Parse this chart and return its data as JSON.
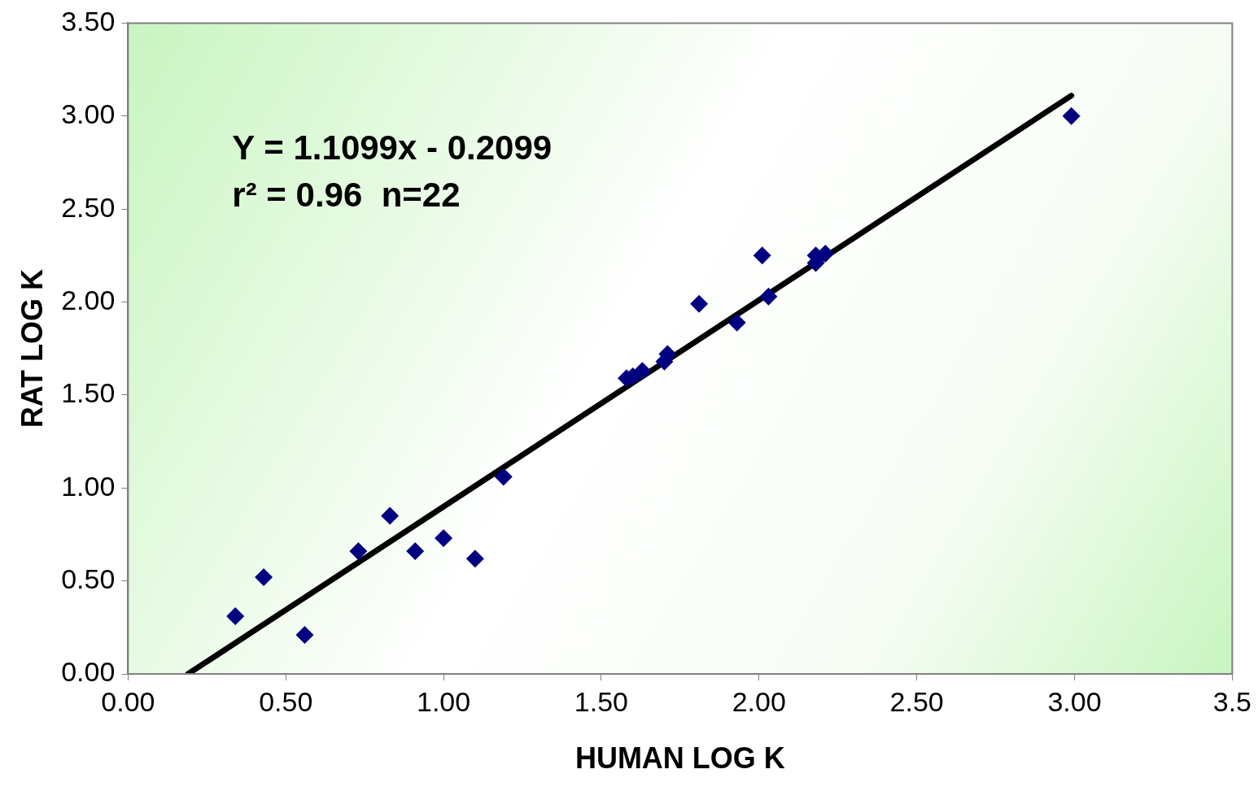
{
  "chart_data": {
    "type": "scatter",
    "xlabel": "HUMAN LOG K",
    "ylabel": "RAT LOG K",
    "annotations": [
      "Y = 1.1099x - 0.2099",
      "r² = 0.96  n=22"
    ],
    "xlim": [
      0,
      3.5
    ],
    "ylim": [
      0,
      3.5
    ],
    "xticks": [
      {
        "value": 0,
        "label": "0.00"
      },
      {
        "value": 0.5,
        "label": "0.50"
      },
      {
        "value": 1,
        "label": "1.00"
      },
      {
        "value": 1.5,
        "label": "1.50"
      },
      {
        "value": 2,
        "label": "2.00"
      },
      {
        "value": 2.5,
        "label": "2.50"
      },
      {
        "value": 3,
        "label": "3.00"
      },
      {
        "value": 3.5,
        "label": "3.5"
      }
    ],
    "yticks": [
      {
        "value": 0,
        "label": "0.00"
      },
      {
        "value": 0.5,
        "label": "0.50"
      },
      {
        "value": 1,
        "label": "1.00"
      },
      {
        "value": 1.5,
        "label": "1.50"
      },
      {
        "value": 2,
        "label": "2.00"
      },
      {
        "value": 2.5,
        "label": "2.50"
      },
      {
        "value": 3,
        "label": "3.00"
      },
      {
        "value": 3.5,
        "label": "3.50"
      }
    ],
    "marker": "diamond",
    "legend": false,
    "series": [
      {
        "type": "scatter",
        "color": "#000080",
        "x": [
          0.34,
          0.43,
          0.56,
          0.73,
          0.83,
          0.91,
          1.0,
          1.1,
          1.19,
          1.58,
          1.6,
          1.63,
          1.7,
          1.71,
          1.81,
          1.93,
          2.01,
          2.03,
          2.18,
          2.18,
          2.21,
          2.99
        ],
        "values": [
          0.31,
          0.52,
          0.21,
          0.66,
          0.85,
          0.66,
          0.73,
          0.62,
          1.06,
          1.59,
          1.6,
          1.63,
          1.68,
          1.72,
          1.99,
          1.89,
          2.25,
          2.03,
          2.21,
          2.25,
          2.26,
          3.0
        ]
      },
      {
        "type": "line",
        "color": "#000000",
        "marker": "none",
        "x": [
          0.19,
          2.99
        ],
        "values": [
          0,
          3.11
        ]
      }
    ]
  }
}
